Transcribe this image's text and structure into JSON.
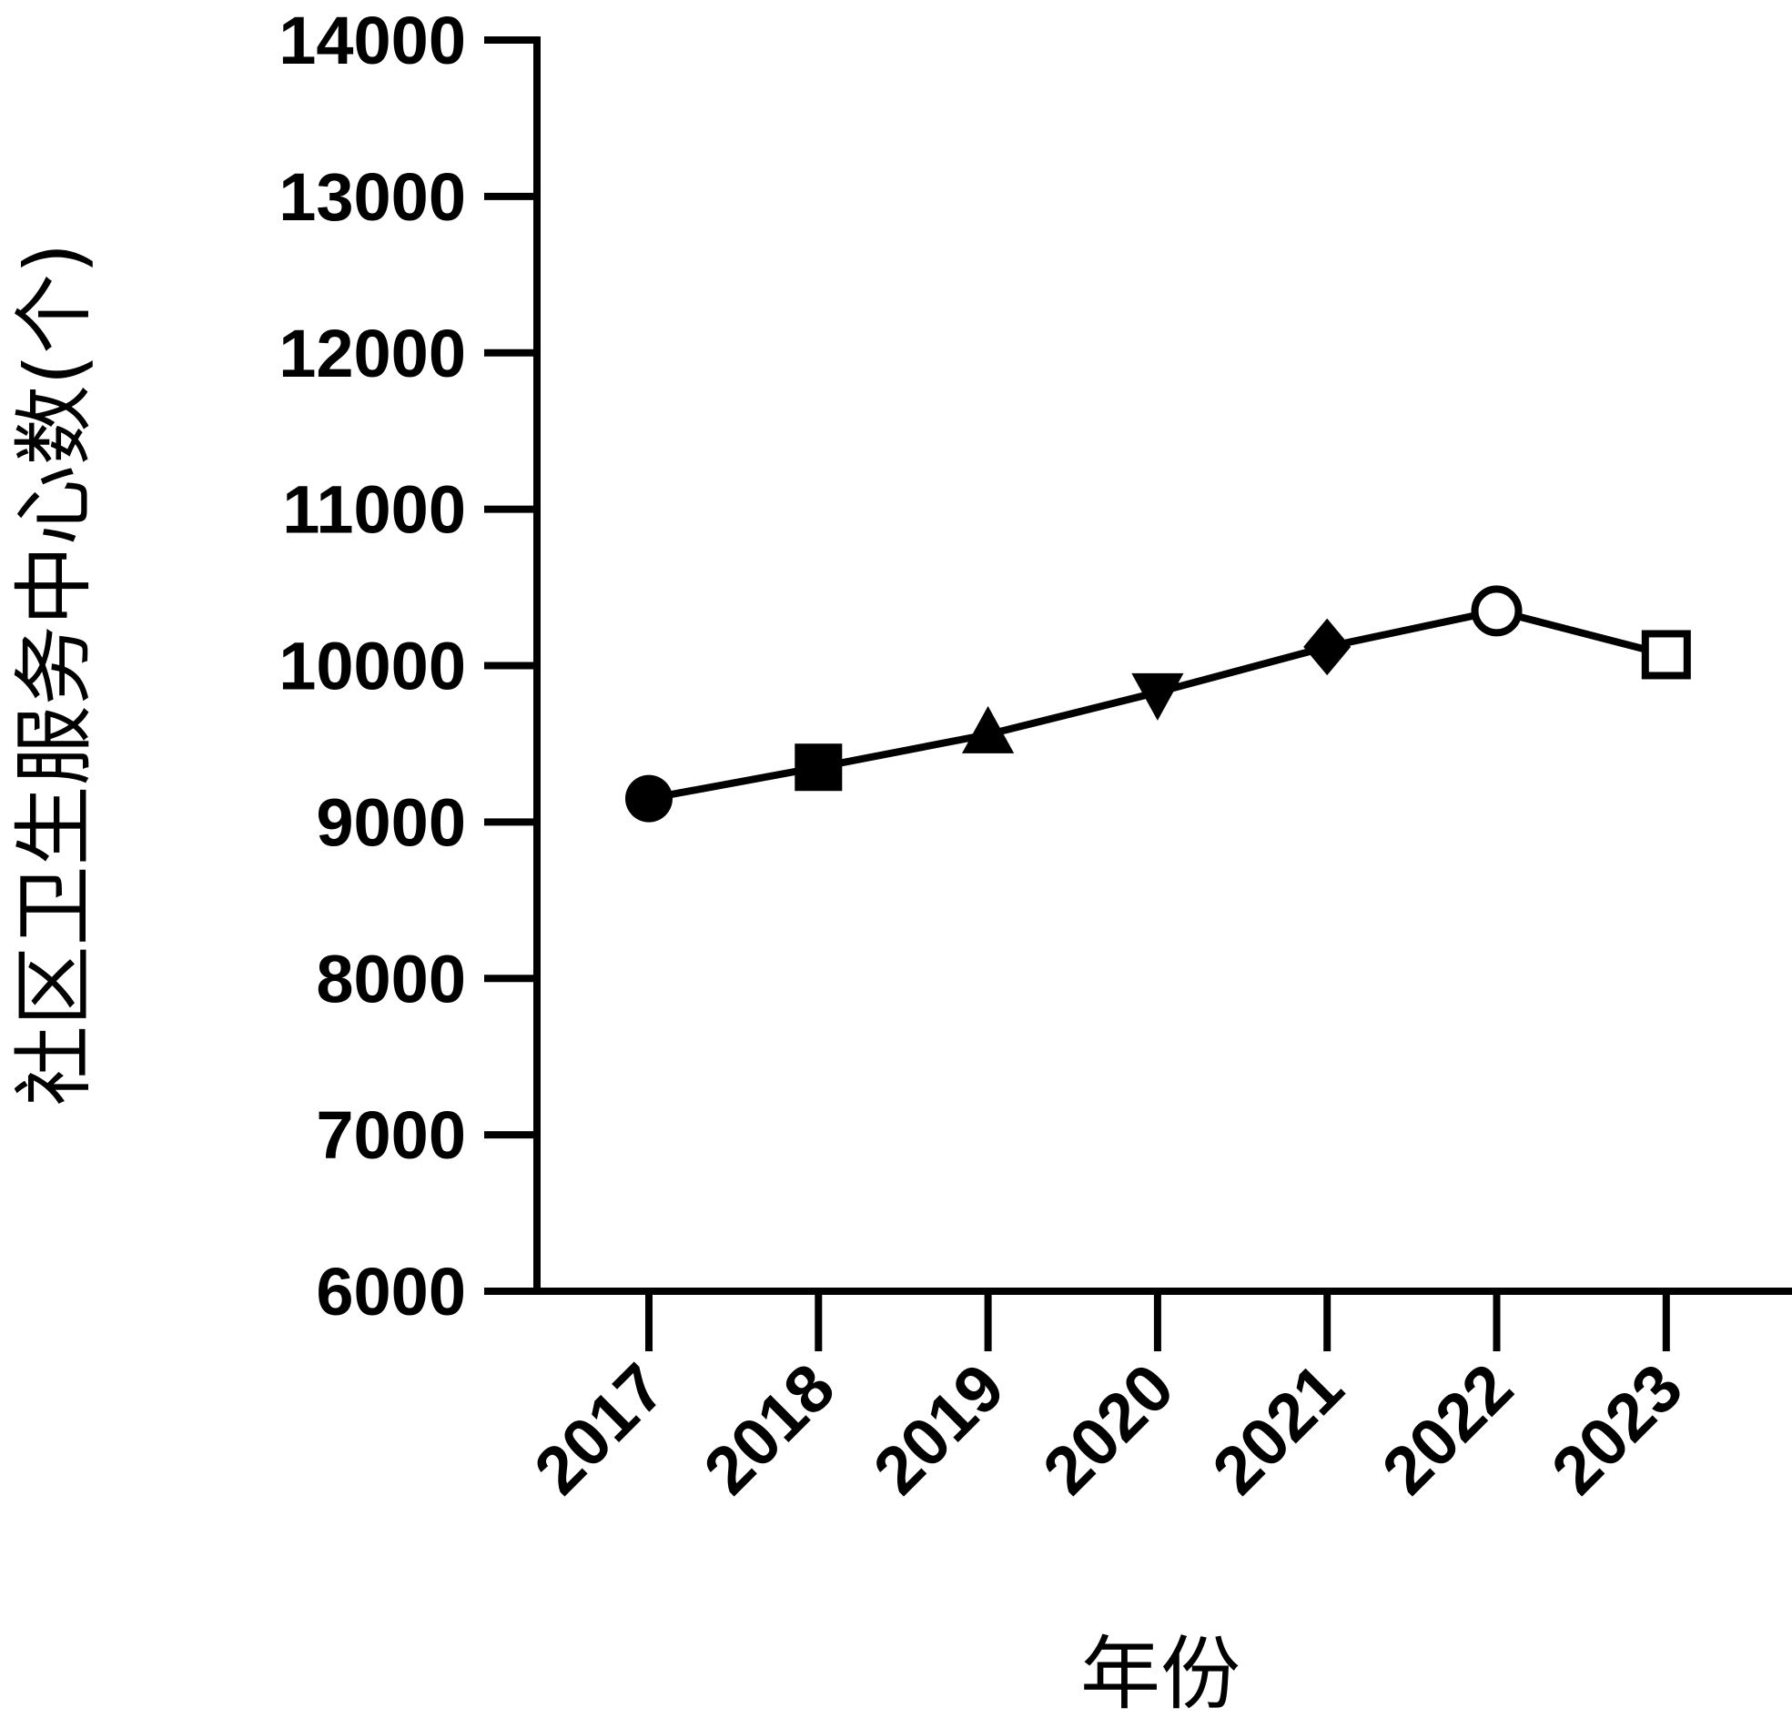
{
  "chart_data": {
    "type": "line",
    "y_label": "社区卫生服务中心数(个)",
    "x_label": "年份",
    "categories": [
      "2017",
      "2018",
      "2019",
      "2020",
      "2021",
      "2022",
      "2023"
    ],
    "values": [
      9150,
      9350,
      9560,
      9830,
      10120,
      10350,
      10070
    ],
    "color": "#000000",
    "markers": [
      "circle",
      "square",
      "triangle-up",
      "triangle-down",
      "diamond",
      "open-circle",
      "open-square"
    ],
    "ylim": [
      6000,
      14000
    ],
    "yticks": [
      6000,
      7000,
      8000,
      9000,
      10000,
      11000,
      12000,
      13000,
      14000
    ],
    "grid": false
  }
}
